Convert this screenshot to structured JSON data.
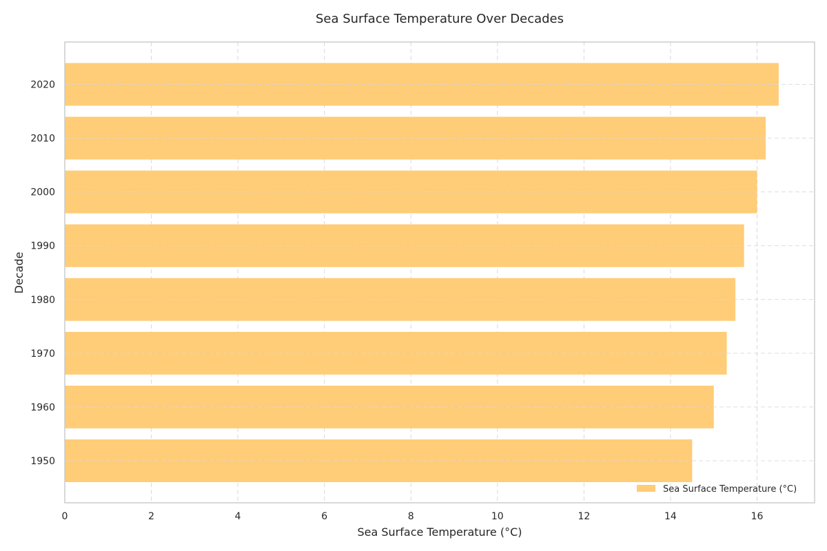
{
  "chart_data": {
    "type": "bar",
    "orientation": "horizontal",
    "title": "Sea Surface Temperature Over Decades",
    "xlabel": "Sea Surface Temperature (°C)",
    "ylabel": "Decade",
    "categories": [
      "1950",
      "1960",
      "1970",
      "1980",
      "1990",
      "2000",
      "2010",
      "2020"
    ],
    "series": [
      {
        "name": "Sea Surface Temperature (°C)",
        "values": [
          14.5,
          15.0,
          15.3,
          15.5,
          15.7,
          16.0,
          16.2,
          16.5
        ],
        "color": "#ffcc77"
      }
    ],
    "xlim": [
      0,
      17.33
    ],
    "xticks": [
      "0",
      "2",
      "4",
      "6",
      "8",
      "10",
      "12",
      "14",
      "16"
    ],
    "grid": true,
    "legend_position": "lower-right",
    "colors": {
      "bar": "#ffcc77",
      "grid": "#d9d9d9",
      "axes": "#cccccc",
      "text": "#262626"
    }
  }
}
